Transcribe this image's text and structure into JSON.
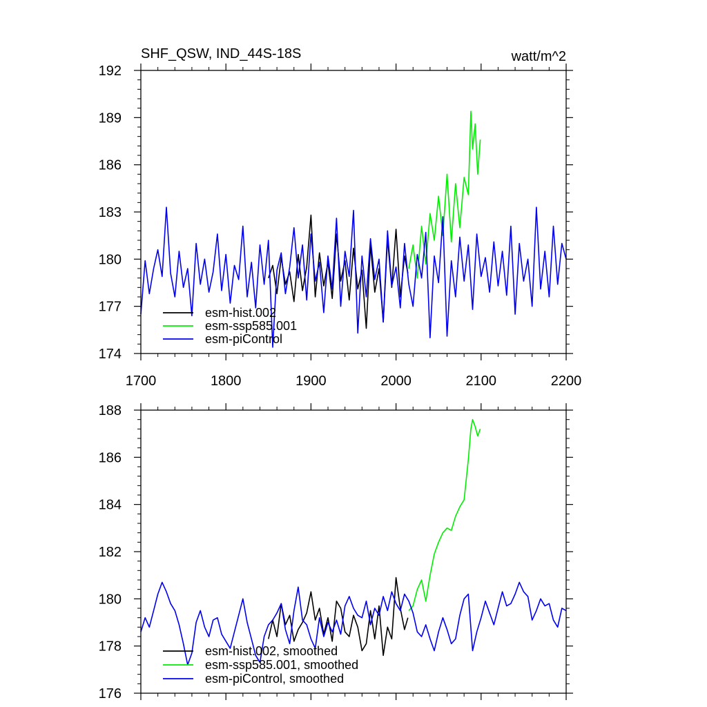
{
  "chart_data": [
    {
      "type": "line",
      "title": "SHF_QSW, IND_44S-18S",
      "units": "watt/m^2",
      "xlim": [
        1700,
        2200
      ],
      "ylim": [
        174,
        192
      ],
      "xticks": [
        1700,
        1800,
        1900,
        2000,
        2100,
        2200
      ],
      "xtick_labels": [
        "1700",
        "1800",
        "1900",
        "2000",
        "2100",
        "2200"
      ],
      "yticks": [
        174,
        177,
        180,
        183,
        186,
        189,
        192
      ],
      "ytick_labels": [
        "174",
        "177",
        "180",
        "183",
        "186",
        "189",
        "192"
      ],
      "legend": [
        "esm-hist.002",
        "esm-ssp585.001",
        "esm-piControl"
      ],
      "legend_position": "bottom-left",
      "series": [
        {
          "name": "esm-hist.002",
          "color": "#000000",
          "x_start": 1850,
          "x": [
            1850,
            1855,
            1860,
            1865,
            1870,
            1875,
            1880,
            1885,
            1890,
            1895,
            1900,
            1905,
            1910,
            1915,
            1920,
            1925,
            1930,
            1935,
            1940,
            1945,
            1950,
            1955,
            1960,
            1965,
            1970,
            1975,
            1980,
            1985,
            1990,
            1995,
            2000,
            2005,
            2010,
            2014
          ],
          "values": [
            178.8,
            179.6,
            177.8,
            180.1,
            178.4,
            179.2,
            177.3,
            180.3,
            178.0,
            179.5,
            182.8,
            177.6,
            180.4,
            178.3,
            179.8,
            177.5,
            181.6,
            178.6,
            179.9,
            177.4,
            180.7,
            178.1,
            179.3,
            175.6,
            180.9,
            177.9,
            179.4,
            176.0,
            181.3,
            178.2,
            181.9,
            177.6,
            180.2,
            179.1
          ]
        },
        {
          "name": "esm-ssp585.001",
          "color": "#00ee00",
          "x": [
            2015,
            2020,
            2025,
            2030,
            2035,
            2040,
            2045,
            2050,
            2055,
            2060,
            2065,
            2070,
            2075,
            2080,
            2085,
            2088,
            2090,
            2093,
            2096,
            2099
          ],
          "values": [
            179.4,
            180.9,
            178.8,
            182.1,
            179.7,
            182.9,
            181.2,
            184.0,
            181.5,
            185.4,
            181.1,
            184.8,
            182.0,
            185.2,
            184.1,
            189.4,
            187.0,
            188.6,
            185.4,
            187.6
          ]
        },
        {
          "name": "esm-piControl",
          "color": "#0000ee",
          "x_start": 1700,
          "x_end": 2200,
          "step": 5,
          "values": [
            176.5,
            179.9,
            177.8,
            179.4,
            180.6,
            178.9,
            183.3,
            179.1,
            177.6,
            180.5,
            178.2,
            179.4,
            176.4,
            181.0,
            178.4,
            180.0,
            177.9,
            179.2,
            181.6,
            178.0,
            180.3,
            177.2,
            179.6,
            178.7,
            182.1,
            177.6,
            179.8,
            176.9,
            180.9,
            178.4,
            181.2,
            174.4,
            179.3,
            180.4,
            177.8,
            179.5,
            182.0,
            178.8,
            180.9,
            177.4,
            181.6,
            178.6,
            179.8,
            176.6,
            180.2,
            178.1,
            182.6,
            177.0,
            180.5,
            178.9,
            183.1,
            175.3,
            180.2,
            177.6,
            181.3,
            178.7,
            180.0,
            176.0,
            181.8,
            178.3,
            179.5,
            176.9,
            181.0,
            178.4,
            177.0,
            180.3,
            178.8,
            181.7,
            175.0,
            180.2,
            178.5,
            182.7,
            175.1,
            179.9,
            177.6,
            181.4,
            178.6,
            180.9,
            176.8,
            181.6,
            178.9,
            180.1,
            177.9,
            181.1,
            178.3,
            180.5,
            177.7,
            182.1,
            176.5,
            181.0,
            178.6,
            180.0,
            177.0,
            183.3,
            178.1,
            180.5,
            177.6,
            182.1,
            178.4,
            181.0,
            180.0
          ]
        }
      ]
    },
    {
      "type": "line",
      "ylim": [
        176,
        188
      ],
      "yticks": [
        176,
        178,
        180,
        182,
        184,
        186,
        188
      ],
      "ytick_labels": [
        "176",
        "178",
        "180",
        "182",
        "184",
        "186",
        "188"
      ],
      "xlim": [
        1700,
        2200
      ],
      "xticks": [
        1700,
        1800,
        1900,
        2000,
        2100,
        2200
      ],
      "legend": [
        "esm-hist.002, smoothed",
        "esm-ssp585.001, smoothed",
        "esm-piControl, smoothed"
      ],
      "legend_position": "bottom-left",
      "series": [
        {
          "name": "esm-hist.002, smoothed",
          "color": "#000000",
          "x": [
            1850,
            1855,
            1860,
            1865,
            1870,
            1875,
            1880,
            1885,
            1890,
            1895,
            1900,
            1905,
            1910,
            1915,
            1920,
            1925,
            1930,
            1935,
            1940,
            1945,
            1950,
            1955,
            1960,
            1965,
            1970,
            1975,
            1980,
            1985,
            1990,
            1995,
            2000,
            2005,
            2010,
            2014
          ],
          "values": [
            178.3,
            179.1,
            178.4,
            179.8,
            178.9,
            179.3,
            178.2,
            178.7,
            179.0,
            179.4,
            180.3,
            179.1,
            179.6,
            178.5,
            179.2,
            178.2,
            179.9,
            179.6,
            178.6,
            178.4,
            179.3,
            178.8,
            177.8,
            178.1,
            179.5,
            178.3,
            179.7,
            177.6,
            178.8,
            178.3,
            180.9,
            179.6,
            178.7,
            179.2
          ]
        },
        {
          "name": "esm-ssp585.001, smoothed",
          "color": "#00ee00",
          "x": [
            2015,
            2020,
            2025,
            2030,
            2035,
            2040,
            2045,
            2050,
            2055,
            2060,
            2065,
            2070,
            2075,
            2080,
            2085,
            2088,
            2090,
            2093,
            2096,
            2099
          ],
          "values": [
            179.5,
            179.7,
            180.4,
            180.8,
            179.9,
            181.0,
            181.9,
            182.4,
            182.8,
            183.0,
            182.9,
            183.5,
            183.9,
            184.2,
            185.9,
            187.2,
            187.6,
            187.3,
            186.9,
            187.2
          ]
        },
        {
          "name": "esm-piControl, smoothed",
          "color": "#0000ee",
          "x_start": 1700,
          "x_end": 2200,
          "step": 5,
          "values": [
            178.6,
            179.2,
            178.8,
            179.5,
            180.2,
            180.7,
            180.3,
            179.8,
            179.5,
            178.9,
            178.1,
            177.2,
            177.7,
            179.0,
            179.5,
            178.8,
            178.4,
            179.1,
            179.2,
            178.5,
            178.2,
            177.9,
            178.6,
            179.3,
            180.0,
            179.0,
            178.3,
            177.6,
            177.3,
            178.4,
            178.9,
            179.1,
            179.4,
            179.8,
            178.7,
            178.1,
            179.5,
            180.5,
            179.1,
            178.9,
            178.3,
            177.9,
            179.2,
            178.4,
            179.0,
            178.6,
            179.1,
            178.5,
            179.7,
            180.1,
            179.6,
            179.3,
            179.2,
            179.9,
            178.9,
            179.6,
            179.3,
            180.1,
            179.5,
            180.3,
            179.8,
            179.5,
            180.2,
            179.9,
            179.4,
            178.6,
            178.4,
            178.9,
            178.3,
            177.8,
            178.6,
            179.2,
            178.7,
            178.1,
            178.3,
            179.3,
            180.0,
            180.2,
            177.8,
            178.6,
            179.2,
            179.9,
            179.4,
            178.9,
            179.6,
            180.3,
            179.7,
            179.8,
            180.2,
            180.7,
            180.3,
            180.1,
            179.1,
            179.5,
            180.0,
            179.7,
            179.8,
            179.1,
            178.8,
            179.6,
            179.5
          ]
        }
      ]
    }
  ]
}
